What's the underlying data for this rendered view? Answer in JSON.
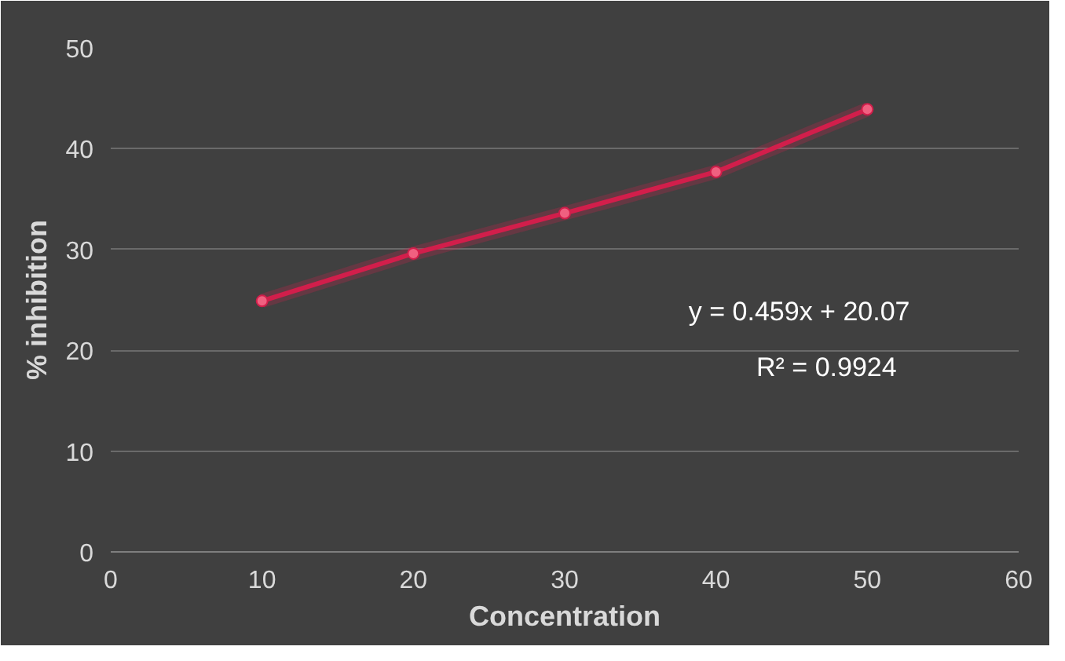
{
  "chart_data": {
    "type": "line",
    "xlabel": "Concentration",
    "ylabel": "% inhibition",
    "x": [
      10,
      20,
      30,
      40,
      50
    ],
    "series": [
      {
        "color": "#d21e4b",
        "values": [
          24.9,
          29.6,
          33.6,
          37.7,
          43.9
        ]
      }
    ],
    "xlim": [
      0,
      60
    ],
    "xticks": [
      0,
      10,
      20,
      30,
      40,
      50,
      60
    ],
    "ylim": [
      0,
      50
    ],
    "yticks": [
      0,
      10,
      20,
      30,
      40,
      50
    ],
    "grid": "y",
    "marker": "circle",
    "line_style": "solid",
    "annotations": [
      "y = 0.459x + 20.07",
      "R² = 0.9924"
    ]
  }
}
